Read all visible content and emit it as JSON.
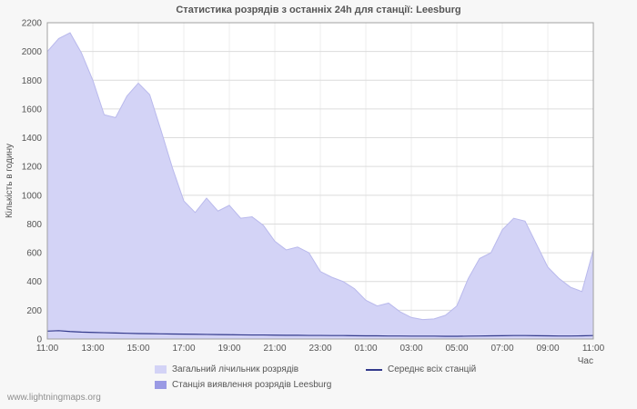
{
  "watermark": "www.lightningmaps.org",
  "chart_data": {
    "type": "area",
    "title": "Статистика розрядів з останніх 24h для станції: Leesburg",
    "ylabel": "Кількість в годину",
    "xlabel": "Час",
    "ylim": [
      0,
      2200
    ],
    "y_tick_step": 200,
    "grid": true,
    "legend_position": "bottom",
    "sample_interval_minutes": 30,
    "x_tick_labels": [
      "11:00",
      "13:00",
      "15:00",
      "17:00",
      "19:00",
      "21:00",
      "23:00",
      "01:00",
      "03:00",
      "05:00",
      "07:00",
      "09:00",
      "11:00"
    ],
    "series": [
      {
        "name": "Загальний лічильник розрядів",
        "type": "area",
        "color": "#d3d3f6",
        "values": [
          2000,
          2090,
          2130,
          1990,
          1800,
          1560,
          1540,
          1690,
          1780,
          1700,
          1450,
          1190,
          960,
          880,
          980,
          890,
          930,
          840,
          850,
          790,
          680,
          620,
          640,
          600,
          470,
          430,
          400,
          350,
          270,
          230,
          250,
          190,
          150,
          135,
          140,
          165,
          230,
          420,
          560,
          600,
          760,
          840,
          820,
          660,
          500,
          420,
          360,
          330,
          620
        ]
      },
      {
        "name": "Станція виявлення розрядів Leesburg",
        "type": "area",
        "color": "#9a9ae4",
        "values": []
      },
      {
        "name": "Середнє всіх станцій",
        "type": "line",
        "color": "#333a8c",
        "values": [
          55,
          58,
          52,
          48,
          46,
          44,
          42,
          40,
          38,
          37,
          36,
          35,
          34,
          33,
          32,
          31,
          30,
          29,
          28,
          28,
          27,
          26,
          26,
          25,
          25,
          24,
          24,
          23,
          22,
          22,
          21,
          21,
          20,
          20,
          20,
          19,
          19,
          20,
          21,
          22,
          23,
          24,
          24,
          23,
          22,
          21,
          21,
          22,
          24
        ]
      }
    ]
  }
}
